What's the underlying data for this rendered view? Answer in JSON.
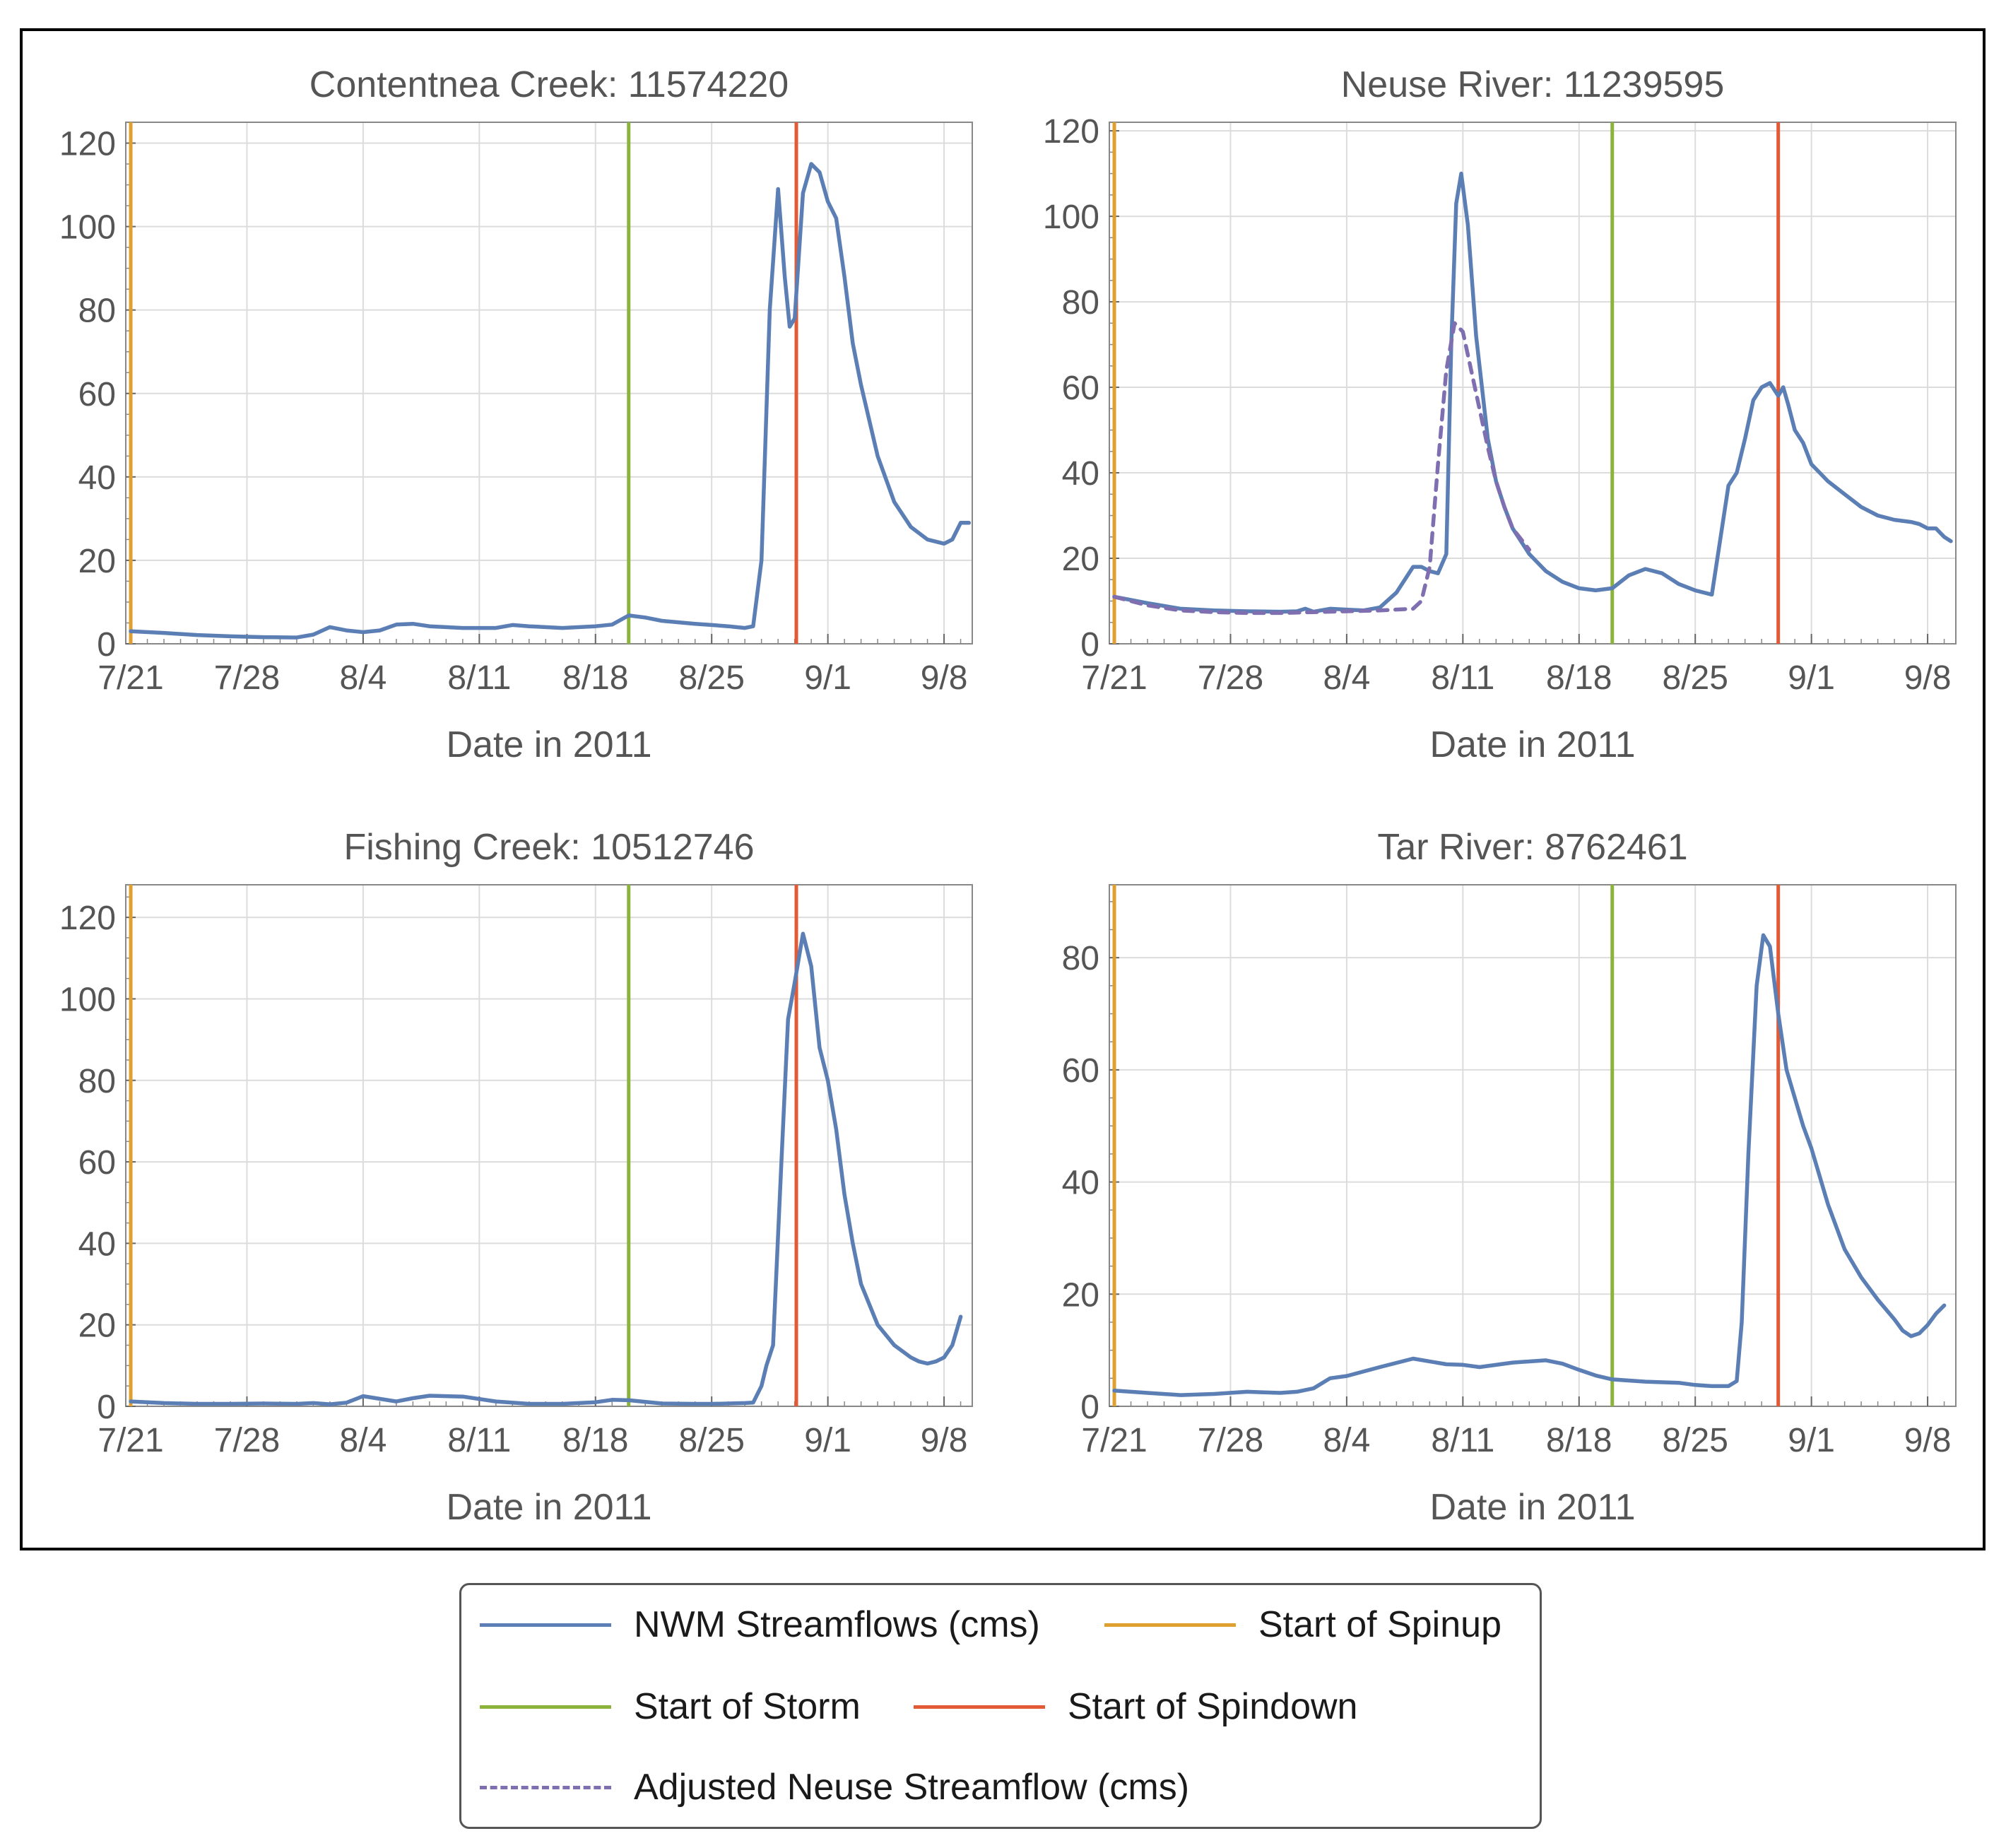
{
  "x_ticks": [
    "7/21",
    "7/28",
    "8/4",
    "8/11",
    "8/18",
    "8/25",
    "9/1",
    "9/8"
  ],
  "colors": {
    "streamflow": "#5b7fb5",
    "spinup": "#e0a030",
    "storm": "#8cb43c",
    "spindown": "#e25a36",
    "adjusted": "#7f6fb0"
  },
  "legend": {
    "nwm": "NWM Streamflows (cms)",
    "spinup": "Start of Spinup",
    "storm": "Start of Storm",
    "spindown": "Start of Spindown",
    "adjusted": "Adjusted Neuse Streamflow (cms)"
  },
  "chart_data": [
    {
      "type": "line",
      "title": "Contentnea Creek: 11574220",
      "xlabel": "Date in 2011",
      "ylabel": "",
      "xlim": [
        -0.3,
        50.7
      ],
      "ylim": [
        0,
        125
      ],
      "yticks": [
        0,
        20,
        40,
        60,
        80,
        100,
        120
      ],
      "vlines": {
        "spinup": 0,
        "storm": 30,
        "spindown": 40.1
      },
      "series": [
        {
          "name": "NWM Streamflows (cms)",
          "x": [
            0,
            2,
            4,
            6,
            8,
            10,
            11,
            12,
            13,
            14,
            15,
            16,
            17,
            18,
            20,
            22,
            23,
            24,
            26,
            28,
            29,
            30,
            31,
            32,
            34,
            35,
            36,
            37,
            37.5,
            38,
            38.5,
            39,
            39.4,
            39.7,
            40,
            40.5,
            41,
            41.5,
            42,
            42.5,
            43,
            43.5,
            44,
            45,
            46,
            47,
            48,
            49,
            49.5,
            50,
            50.5
          ],
          "values": [
            3,
            2.6,
            2.1,
            1.8,
            1.6,
            1.5,
            2.2,
            4,
            3.2,
            2.8,
            3.2,
            4.6,
            4.8,
            4.2,
            3.8,
            3.8,
            4.5,
            4.2,
            3.8,
            4.2,
            4.6,
            6.8,
            6.3,
            5.5,
            4.8,
            4.5,
            4.2,
            3.8,
            4.2,
            20,
            80,
            109,
            88,
            76,
            78,
            108,
            115,
            113,
            106,
            102,
            88,
            72,
            62,
            45,
            34,
            28,
            25,
            24,
            25,
            29,
            29
          ]
        }
      ]
    },
    {
      "type": "line",
      "title": "Neuse River: 11239595",
      "xlabel": "Date in 2011",
      "ylabel": "",
      "xlim": [
        -0.3,
        50.7
      ],
      "ylim": [
        0,
        122
      ],
      "yticks": [
        0,
        20,
        40,
        60,
        80,
        100,
        120
      ],
      "vlines": {
        "spinup": 0,
        "storm": 30,
        "spindown": 40
      },
      "series": [
        {
          "name": "NWM Streamflows (cms)",
          "x": [
            0,
            2,
            4,
            6,
            8,
            10,
            11,
            11.5,
            12,
            13,
            14,
            15,
            16,
            17,
            18,
            18.5,
            19,
            19.5,
            20,
            20.3,
            20.6,
            20.9,
            21.3,
            21.8,
            22.5,
            23,
            23.5,
            24,
            25,
            26,
            27,
            28,
            29,
            30,
            31,
            32,
            33,
            34,
            35,
            36,
            37,
            37.5,
            38,
            38.5,
            39,
            39.5,
            40,
            40.3,
            40.6,
            41,
            41.5,
            42,
            42.5,
            43,
            44,
            45,
            46,
            47,
            48,
            48.5,
            49,
            49.5,
            50,
            50.4
          ],
          "values": [
            11,
            9.5,
            8.2,
            7.8,
            7.6,
            7.5,
            7.6,
            8.2,
            7.5,
            8.2,
            8.0,
            7.8,
            8.5,
            12,
            18,
            18,
            17,
            16.5,
            21,
            70,
            103,
            110,
            98,
            72,
            48,
            38,
            32,
            27,
            21,
            17,
            14.5,
            13,
            12.5,
            13,
            16,
            17.5,
            16.5,
            14,
            12.5,
            11.5,
            37,
            40,
            48,
            57,
            60,
            61,
            58,
            60,
            56,
            50,
            47,
            42,
            40,
            38,
            35,
            32,
            30,
            29,
            28.5,
            28,
            27,
            27,
            25,
            24
          ]
        },
        {
          "name": "Adjusted Neuse Streamflow (cms)",
          "x": [
            0,
            2,
            4,
            6,
            8,
            10,
            12,
            14,
            16,
            18,
            18.5,
            19,
            19.5,
            20,
            20.5,
            21,
            21.5,
            22,
            22.5,
            23,
            23.5,
            24,
            25
          ],
          "values": [
            11,
            9,
            7.8,
            7.4,
            7.2,
            7.2,
            7.4,
            7.6,
            7.8,
            8.2,
            10,
            18,
            42,
            64,
            75,
            73,
            64,
            55,
            46,
            38,
            32,
            27,
            22
          ]
        }
      ]
    },
    {
      "type": "line",
      "title": "Fishing Creek: 10512746",
      "xlabel": "Date in 2011",
      "ylabel": "",
      "xlim": [
        -0.3,
        50.7
      ],
      "ylim": [
        0,
        128
      ],
      "yticks": [
        0,
        20,
        40,
        60,
        80,
        100,
        120
      ],
      "vlines": {
        "spinup": 0,
        "storm": 30,
        "spindown": 40.1
      },
      "series": [
        {
          "name": "NWM Streamflows (cms)",
          "x": [
            0,
            2,
            4,
            6,
            8,
            10,
            11,
            12,
            13,
            14,
            16,
            17,
            18,
            20,
            22,
            24,
            26,
            28,
            29,
            30,
            32,
            34,
            35,
            36,
            37,
            37.5,
            38,
            38.3,
            38.7,
            39.2,
            39.6,
            40,
            40.5,
            41,
            41.5,
            42,
            42.5,
            43,
            43.5,
            44,
            45,
            46,
            47,
            47.5,
            48,
            48.5,
            49,
            49.5,
            50
          ],
          "values": [
            1.2,
            0.8,
            0.6,
            0.6,
            0.7,
            0.6,
            0.8,
            0.5,
            0.9,
            2.5,
            1.2,
            2.0,
            2.6,
            2.4,
            1.2,
            0.6,
            0.6,
            1.0,
            1.6,
            1.5,
            0.7,
            0.6,
            0.6,
            0.7,
            0.8,
            0.9,
            5,
            10,
            15,
            60,
            95,
            104,
            116,
            108,
            88,
            80,
            68,
            52,
            40,
            30,
            20,
            15,
            12,
            11,
            10.5,
            11,
            12,
            15,
            22
          ]
        }
      ]
    },
    {
      "type": "line",
      "title": "Tar River: 8762461",
      "xlabel": "Date in 2011",
      "ylabel": "",
      "xlim": [
        -0.3,
        50.7
      ],
      "ylim": [
        0,
        93
      ],
      "yticks": [
        0,
        20,
        40,
        60,
        80
      ],
      "vlines": {
        "spinup": 0,
        "storm": 30,
        "spindown": 40
      },
      "series": [
        {
          "name": "NWM Streamflows (cms)",
          "x": [
            0,
            2,
            4,
            6,
            8,
            10,
            11,
            12,
            13,
            14,
            16,
            18,
            20,
            21,
            22,
            24,
            26,
            27,
            28,
            29,
            30,
            32,
            34,
            35,
            36,
            37,
            37.5,
            37.8,
            38.2,
            38.7,
            39.1,
            39.5,
            40,
            40.5,
            41,
            41.5,
            42,
            43,
            44,
            45,
            46,
            47,
            47.5,
            48,
            48.5,
            49,
            49.5,
            50
          ],
          "values": [
            2.8,
            2.4,
            2.0,
            2.2,
            2.6,
            2.4,
            2.6,
            3.2,
            5,
            5.4,
            7,
            8.5,
            7.5,
            7.4,
            7.0,
            7.8,
            8.2,
            7.6,
            6.5,
            5.5,
            4.8,
            4.4,
            4.2,
            3.8,
            3.6,
            3.6,
            4.5,
            15,
            45,
            75,
            84,
            82,
            70,
            60,
            55,
            50,
            46,
            36,
            28,
            23,
            19,
            15.5,
            13.5,
            12.5,
            13,
            14.5,
            16.5,
            18
          ]
        }
      ]
    }
  ]
}
